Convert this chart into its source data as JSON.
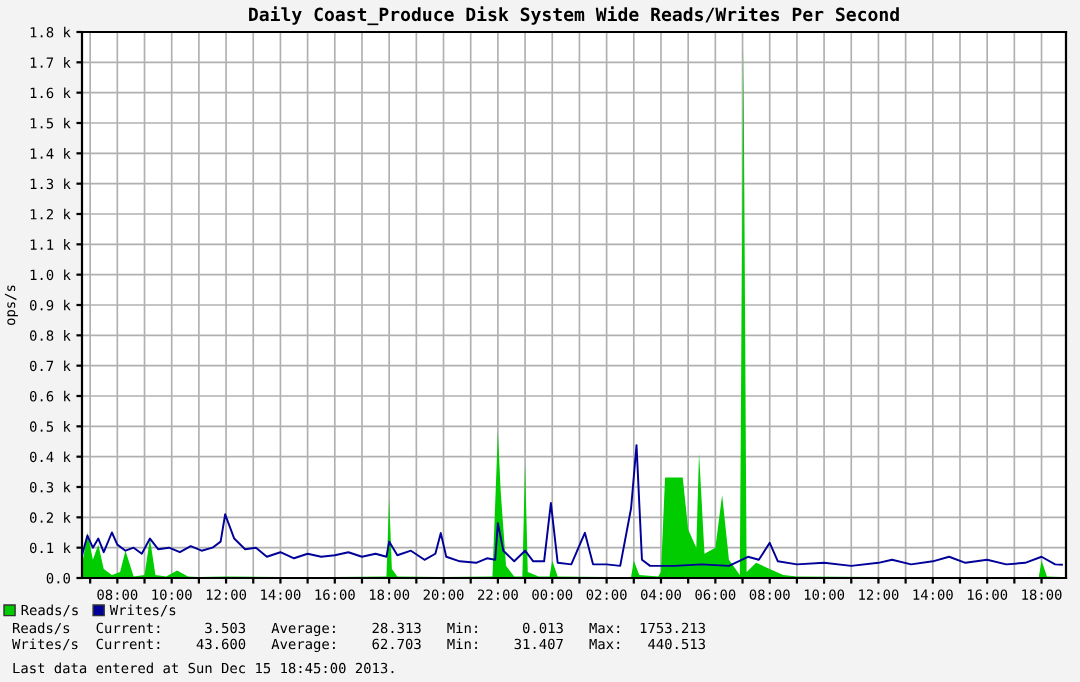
{
  "chart_data": {
    "type": "line",
    "title": "Daily Coast_Produce Disk System Wide Reads/Writes Per Second",
    "ylabel": "ops/s",
    "series": [
      {
        "name": "Reads/s",
        "type": "area",
        "color": "#00cc00",
        "x": [
          "2013-12-14T06:42",
          "2013-12-14T06:54",
          "2013-12-14T07:06",
          "2013-12-14T07:18",
          "2013-12-14T07:30",
          "2013-12-14T07:48",
          "2013-12-14T08:06",
          "2013-12-14T08:18",
          "2013-12-14T08:36",
          "2013-12-14T09:00",
          "2013-12-14T09:12",
          "2013-12-14T09:24",
          "2013-12-14T09:48",
          "2013-12-14T10:12",
          "2013-12-14T10:36",
          "2013-12-14T11:00",
          "2013-12-14T12:00",
          "2013-12-14T14:00",
          "2013-12-14T16:00",
          "2013-12-14T17:54",
          "2013-12-14T18:00",
          "2013-12-14T18:06",
          "2013-12-14T18:18",
          "2013-12-14T20:00",
          "2013-12-14T21:48",
          "2013-12-14T22:00",
          "2013-12-14T22:06",
          "2013-12-14T22:18",
          "2013-12-14T22:36",
          "2013-12-14T22:54",
          "2013-12-14T23:00",
          "2013-12-14T23:06",
          "2013-12-14T23:30",
          "2013-12-14T23:54",
          "2013-12-15T00:00",
          "2013-12-15T00:12",
          "2013-12-15T02:00",
          "2013-12-15T02:54",
          "2013-12-15T03:00",
          "2013-12-15T03:12",
          "2013-12-15T03:54",
          "2013-12-15T04:00",
          "2013-12-15T04:09",
          "2013-12-15T04:48",
          "2013-12-15T05:00",
          "2013-12-15T05:18",
          "2013-12-15T05:24",
          "2013-12-15T05:36",
          "2013-12-15T06:00",
          "2013-12-15T06:15",
          "2013-12-15T06:30",
          "2013-12-15T06:54",
          "2013-12-15T07:02",
          "2013-12-15T07:09",
          "2013-12-15T07:30",
          "2013-12-15T08:00",
          "2013-12-15T08:30",
          "2013-12-15T09:00",
          "2013-12-15T12:00",
          "2013-12-15T16:00",
          "2013-12-15T17:54",
          "2013-12-15T18:00",
          "2013-12-15T18:12",
          "2013-12-15T18:45"
        ],
        "values": [
          40,
          150,
          60,
          110,
          30,
          10,
          20,
          90,
          5,
          10,
          130,
          10,
          5,
          25,
          5,
          3,
          5,
          3,
          3,
          5,
          263,
          30,
          5,
          3,
          5,
          482,
          290,
          40,
          5,
          5,
          379,
          20,
          5,
          5,
          57,
          5,
          3,
          3,
          58,
          10,
          5,
          20,
          331,
          331,
          160,
          100,
          412,
          80,
          100,
          274,
          60,
          10,
          1753,
          20,
          50,
          30,
          10,
          5,
          3,
          3,
          3,
          58,
          5,
          3
        ]
      },
      {
        "name": "Writes/s",
        "color": "#000099",
        "x": [
          "2013-12-14T06:42",
          "2013-12-14T06:54",
          "2013-12-14T07:06",
          "2013-12-14T07:18",
          "2013-12-14T07:30",
          "2013-12-14T07:48",
          "2013-12-14T08:00",
          "2013-12-14T08:18",
          "2013-12-14T08:36",
          "2013-12-14T08:54",
          "2013-12-14T09:12",
          "2013-12-14T09:30",
          "2013-12-14T09:54",
          "2013-12-14T10:18",
          "2013-12-14T10:42",
          "2013-12-14T11:06",
          "2013-12-14T11:30",
          "2013-12-14T11:48",
          "2013-12-14T11:58",
          "2013-12-14T12:18",
          "2013-12-14T12:42",
          "2013-12-14T13:06",
          "2013-12-14T13:30",
          "2013-12-14T14:00",
          "2013-12-14T14:30",
          "2013-12-14T15:00",
          "2013-12-14T15:30",
          "2013-12-14T16:00",
          "2013-12-14T16:30",
          "2013-12-14T17:00",
          "2013-12-14T17:30",
          "2013-12-14T17:54",
          "2013-12-14T18:00",
          "2013-12-14T18:18",
          "2013-12-14T18:48",
          "2013-12-14T19:18",
          "2013-12-14T19:42",
          "2013-12-14T19:54",
          "2013-12-14T20:06",
          "2013-12-14T20:36",
          "2013-12-14T21:12",
          "2013-12-14T21:36",
          "2013-12-14T21:54",
          "2013-12-14T22:00",
          "2013-12-14T22:12",
          "2013-12-14T22:36",
          "2013-12-14T23:00",
          "2013-12-14T23:18",
          "2013-12-14T23:42",
          "2013-12-14T23:57",
          "2013-12-15T00:12",
          "2013-12-15T00:42",
          "2013-12-15T01:12",
          "2013-12-15T01:30",
          "2013-12-15T02:00",
          "2013-12-15T02:30",
          "2013-12-15T02:54",
          "2013-12-15T03:06",
          "2013-12-15T03:18",
          "2013-12-15T03:36",
          "2013-12-15T04:30",
          "2013-12-15T05:30",
          "2013-12-15T06:30",
          "2013-12-15T07:12",
          "2013-12-15T07:36",
          "2013-12-15T08:00",
          "2013-12-15T08:18",
          "2013-12-15T09:00",
          "2013-12-15T10:00",
          "2013-12-15T11:00",
          "2013-12-15T12:00",
          "2013-12-15T12:30",
          "2013-12-15T13:12",
          "2013-12-15T14:00",
          "2013-12-15T14:36",
          "2013-12-15T15:12",
          "2013-12-15T16:00",
          "2013-12-15T16:42",
          "2013-12-15T17:24",
          "2013-12-15T18:00",
          "2013-12-15T18:30",
          "2013-12-15T18:45"
        ],
        "values": [
          75,
          140,
          100,
          130,
          85,
          150,
          110,
          90,
          100,
          80,
          130,
          95,
          100,
          85,
          105,
          90,
          100,
          120,
          210,
          130,
          95,
          100,
          70,
          85,
          65,
          80,
          70,
          75,
          85,
          70,
          80,
          70,
          120,
          75,
          90,
          60,
          80,
          148,
          70,
          55,
          50,
          65,
          60,
          181,
          90,
          55,
          90,
          55,
          55,
          247,
          50,
          45,
          149,
          45,
          45,
          40,
          230,
          438,
          60,
          40,
          40,
          45,
          40,
          70,
          60,
          116,
          55,
          45,
          50,
          40,
          50,
          60,
          45,
          55,
          70,
          50,
          60,
          45,
          50,
          70,
          45,
          44
        ]
      }
    ],
    "xlim": [
      "2013-12-14T06:42",
      "2013-12-15T18:54"
    ],
    "xticks": [
      {
        "value": "2013-12-14T07:00",
        "label": null
      },
      {
        "value": "2013-12-14T08:00",
        "label": "08:00"
      },
      {
        "value": "2013-12-14T09:00",
        "label": null
      },
      {
        "value": "2013-12-14T10:00",
        "label": "10:00"
      },
      {
        "value": "2013-12-14T11:00",
        "label": null
      },
      {
        "value": "2013-12-14T12:00",
        "label": "12:00"
      },
      {
        "value": "2013-12-14T13:00",
        "label": null
      },
      {
        "value": "2013-12-14T14:00",
        "label": "14:00"
      },
      {
        "value": "2013-12-14T15:00",
        "label": null
      },
      {
        "value": "2013-12-14T16:00",
        "label": "16:00"
      },
      {
        "value": "2013-12-14T17:00",
        "label": null
      },
      {
        "value": "2013-12-14T18:00",
        "label": "18:00"
      },
      {
        "value": "2013-12-14T19:00",
        "label": null
      },
      {
        "value": "2013-12-14T20:00",
        "label": "20:00"
      },
      {
        "value": "2013-12-14T21:00",
        "label": null
      },
      {
        "value": "2013-12-14T22:00",
        "label": "22:00"
      },
      {
        "value": "2013-12-14T23:00",
        "label": null
      },
      {
        "value": "2013-12-15T00:00",
        "label": "00:00"
      },
      {
        "value": "2013-12-15T01:00",
        "label": null
      },
      {
        "value": "2013-12-15T02:00",
        "label": "02:00"
      },
      {
        "value": "2013-12-15T03:00",
        "label": null
      },
      {
        "value": "2013-12-15T04:00",
        "label": "04:00"
      },
      {
        "value": "2013-12-15T05:00",
        "label": null
      },
      {
        "value": "2013-12-15T06:00",
        "label": "06:00"
      },
      {
        "value": "2013-12-15T07:00",
        "label": null
      },
      {
        "value": "2013-12-15T08:00",
        "label": "08:00"
      },
      {
        "value": "2013-12-15T09:00",
        "label": null
      },
      {
        "value": "2013-12-15T10:00",
        "label": "10:00"
      },
      {
        "value": "2013-12-15T11:00",
        "label": null
      },
      {
        "value": "2013-12-15T12:00",
        "label": "12:00"
      },
      {
        "value": "2013-12-15T13:00",
        "label": null
      },
      {
        "value": "2013-12-15T14:00",
        "label": "14:00"
      },
      {
        "value": "2013-12-15T15:00",
        "label": null
      },
      {
        "value": "2013-12-15T16:00",
        "label": "16:00"
      },
      {
        "value": "2013-12-15T17:00",
        "label": null
      },
      {
        "value": "2013-12-15T18:00",
        "label": "18:00"
      }
    ],
    "ylim": [
      0,
      1800
    ],
    "yticks": [
      {
        "value": 0,
        "label": "0.0"
      },
      {
        "value": 100,
        "label": "0.1 k"
      },
      {
        "value": 200,
        "label": "0.2 k"
      },
      {
        "value": 300,
        "label": "0.3 k"
      },
      {
        "value": 400,
        "label": "0.4 k"
      },
      {
        "value": 500,
        "label": "0.5 k"
      },
      {
        "value": 600,
        "label": "0.6 k"
      },
      {
        "value": 700,
        "label": "0.7 k"
      },
      {
        "value": 800,
        "label": "0.8 k"
      },
      {
        "value": 900,
        "label": "0.9 k"
      },
      {
        "value": 1000,
        "label": "1.0 k"
      },
      {
        "value": 1100,
        "label": "1.1 k"
      },
      {
        "value": 1200,
        "label": "1.2 k"
      },
      {
        "value": 1300,
        "label": "1.3 k"
      },
      {
        "value": 1400,
        "label": "1.4 k"
      },
      {
        "value": 1500,
        "label": "1.5 k"
      },
      {
        "value": 1600,
        "label": "1.6 k"
      },
      {
        "value": 1700,
        "label": "1.7 k"
      },
      {
        "value": 1800,
        "label": "1.8 k"
      }
    ],
    "grid": true,
    "legend": "bottom",
    "annotations": [
      "Reads/s   Current:     3.503   Average:    28.313   Min:     0.013   Max:  1753.213",
      "Writes/s  Current:    43.600   Average:    62.703   Min:    31.407   Max:   440.513",
      "Last data entered at Sun Dec 15 18:45:00 2013."
    ]
  }
}
